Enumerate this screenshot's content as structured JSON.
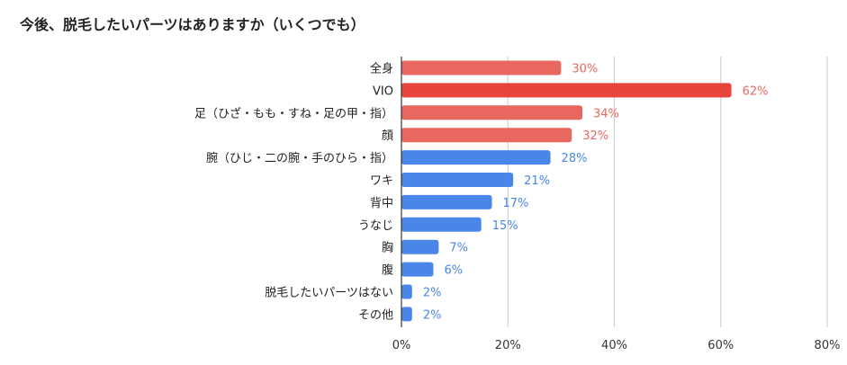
{
  "chart_data": {
    "type": "bar",
    "orientation": "horizontal",
    "title": "今後、脱毛したいパーツはありますか（いくつでも）",
    "categories": [
      "全身",
      "VIO",
      "足（ひざ・もも・すね・足の甲・指）",
      "顔",
      "腕（ひじ・二の腕・手のひら・指）",
      "ワキ",
      "背中",
      "うなじ",
      "胸",
      "腹",
      "脱毛したいパーツはない",
      "その他"
    ],
    "values": [
      30,
      62,
      34,
      32,
      28,
      21,
      17,
      15,
      7,
      6,
      2,
      2
    ],
    "data_labels": [
      "30%",
      "62%",
      "34%",
      "32%",
      "28%",
      "21%",
      "17%",
      "15%",
      "7%",
      "6%",
      "2%",
      "2%"
    ],
    "bar_colors": [
      "#e8675f",
      "#e8453c",
      "#e8675f",
      "#e8675f",
      "#4a86e8",
      "#4a86e8",
      "#4a86e8",
      "#4a86e8",
      "#4a86e8",
      "#4a86e8",
      "#4a86e8",
      "#4a86e8"
    ],
    "label_colors": [
      "#e8675f",
      "#e8675f",
      "#e8675f",
      "#e8675f",
      "#4a86e8",
      "#4a86e8",
      "#4a86e8",
      "#4a86e8",
      "#4a86e8",
      "#4a86e8",
      "#4a86e8",
      "#4a86e8"
    ],
    "xlim": [
      0,
      80
    ],
    "x_ticks": [
      "0%",
      "20%",
      "40%",
      "60%",
      "80%"
    ],
    "xlabel": "",
    "ylabel": "",
    "grid": true,
    "legend": "none"
  }
}
